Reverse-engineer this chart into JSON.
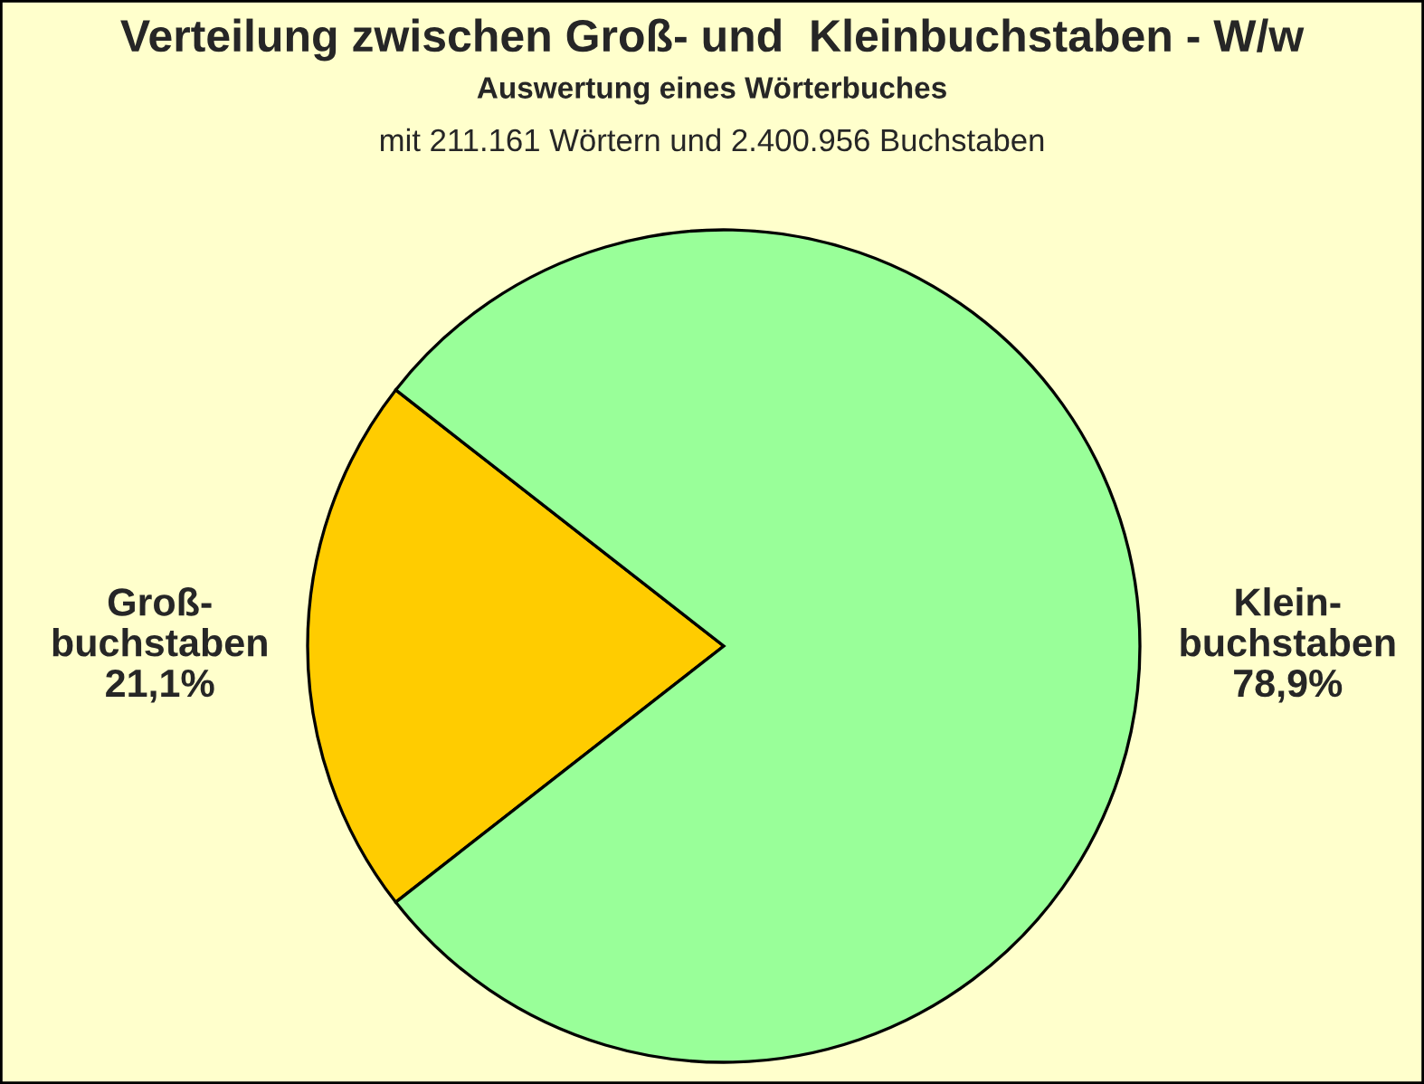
{
  "chart_data": {
    "type": "pie",
    "title": "Verteilung zwischen Groß- und  Kleinbuchstaben - W/w",
    "subtitle": "Auswertung eines Wörterbuches",
    "annotations": [
      "mit 211.161 Wörtern und 2.400.956 Buchstaben"
    ],
    "categories": [
      "Groß-\nbuchstaben",
      "Klein-\nbuchstaben"
    ],
    "values": [
      21.1,
      78.9
    ],
    "value_labels": [
      "21,1%",
      "78,9%"
    ],
    "colors": [
      "#ffcc00",
      "#99ff99"
    ]
  }
}
